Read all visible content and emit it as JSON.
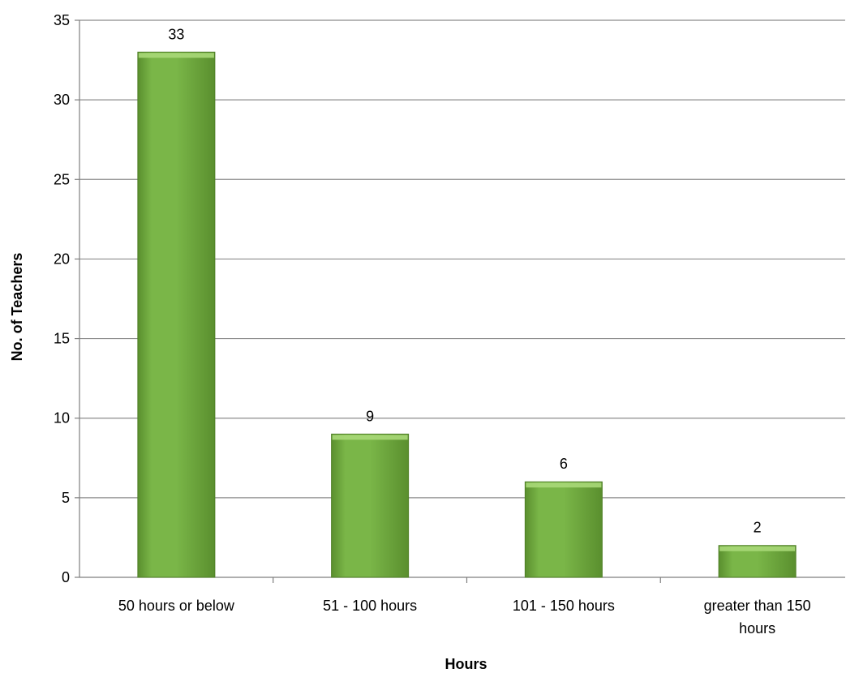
{
  "chart_data": {
    "type": "bar",
    "title": "",
    "categories": [
      "50 hours or below",
      "51 - 100 hours",
      "101 - 150 hours",
      "greater than 150 hours"
    ],
    "category_lines": [
      [
        "50 hours or below"
      ],
      [
        "51 - 100 hours"
      ],
      [
        "101 - 150 hours"
      ],
      [
        "greater than 150",
        "hours"
      ]
    ],
    "values": [
      33,
      9,
      6,
      2
    ],
    "data_labels": [
      "33",
      "9",
      "6",
      "2"
    ],
    "xlabel": "Hours",
    "ylabel": "No. of Teachers",
    "ylim": [
      0,
      35
    ],
    "yticks": [
      0,
      5,
      10,
      15,
      20,
      25,
      30,
      35
    ],
    "grid": true,
    "legend": "none",
    "colors": {
      "bar_fill": "#7ab648",
      "bar_light": "#a8d878",
      "bar_dark": "#5a8f2e",
      "bar_edge": "#4f7f26",
      "grid": "#8c8c8c",
      "axis": "#7f7f7f"
    }
  }
}
